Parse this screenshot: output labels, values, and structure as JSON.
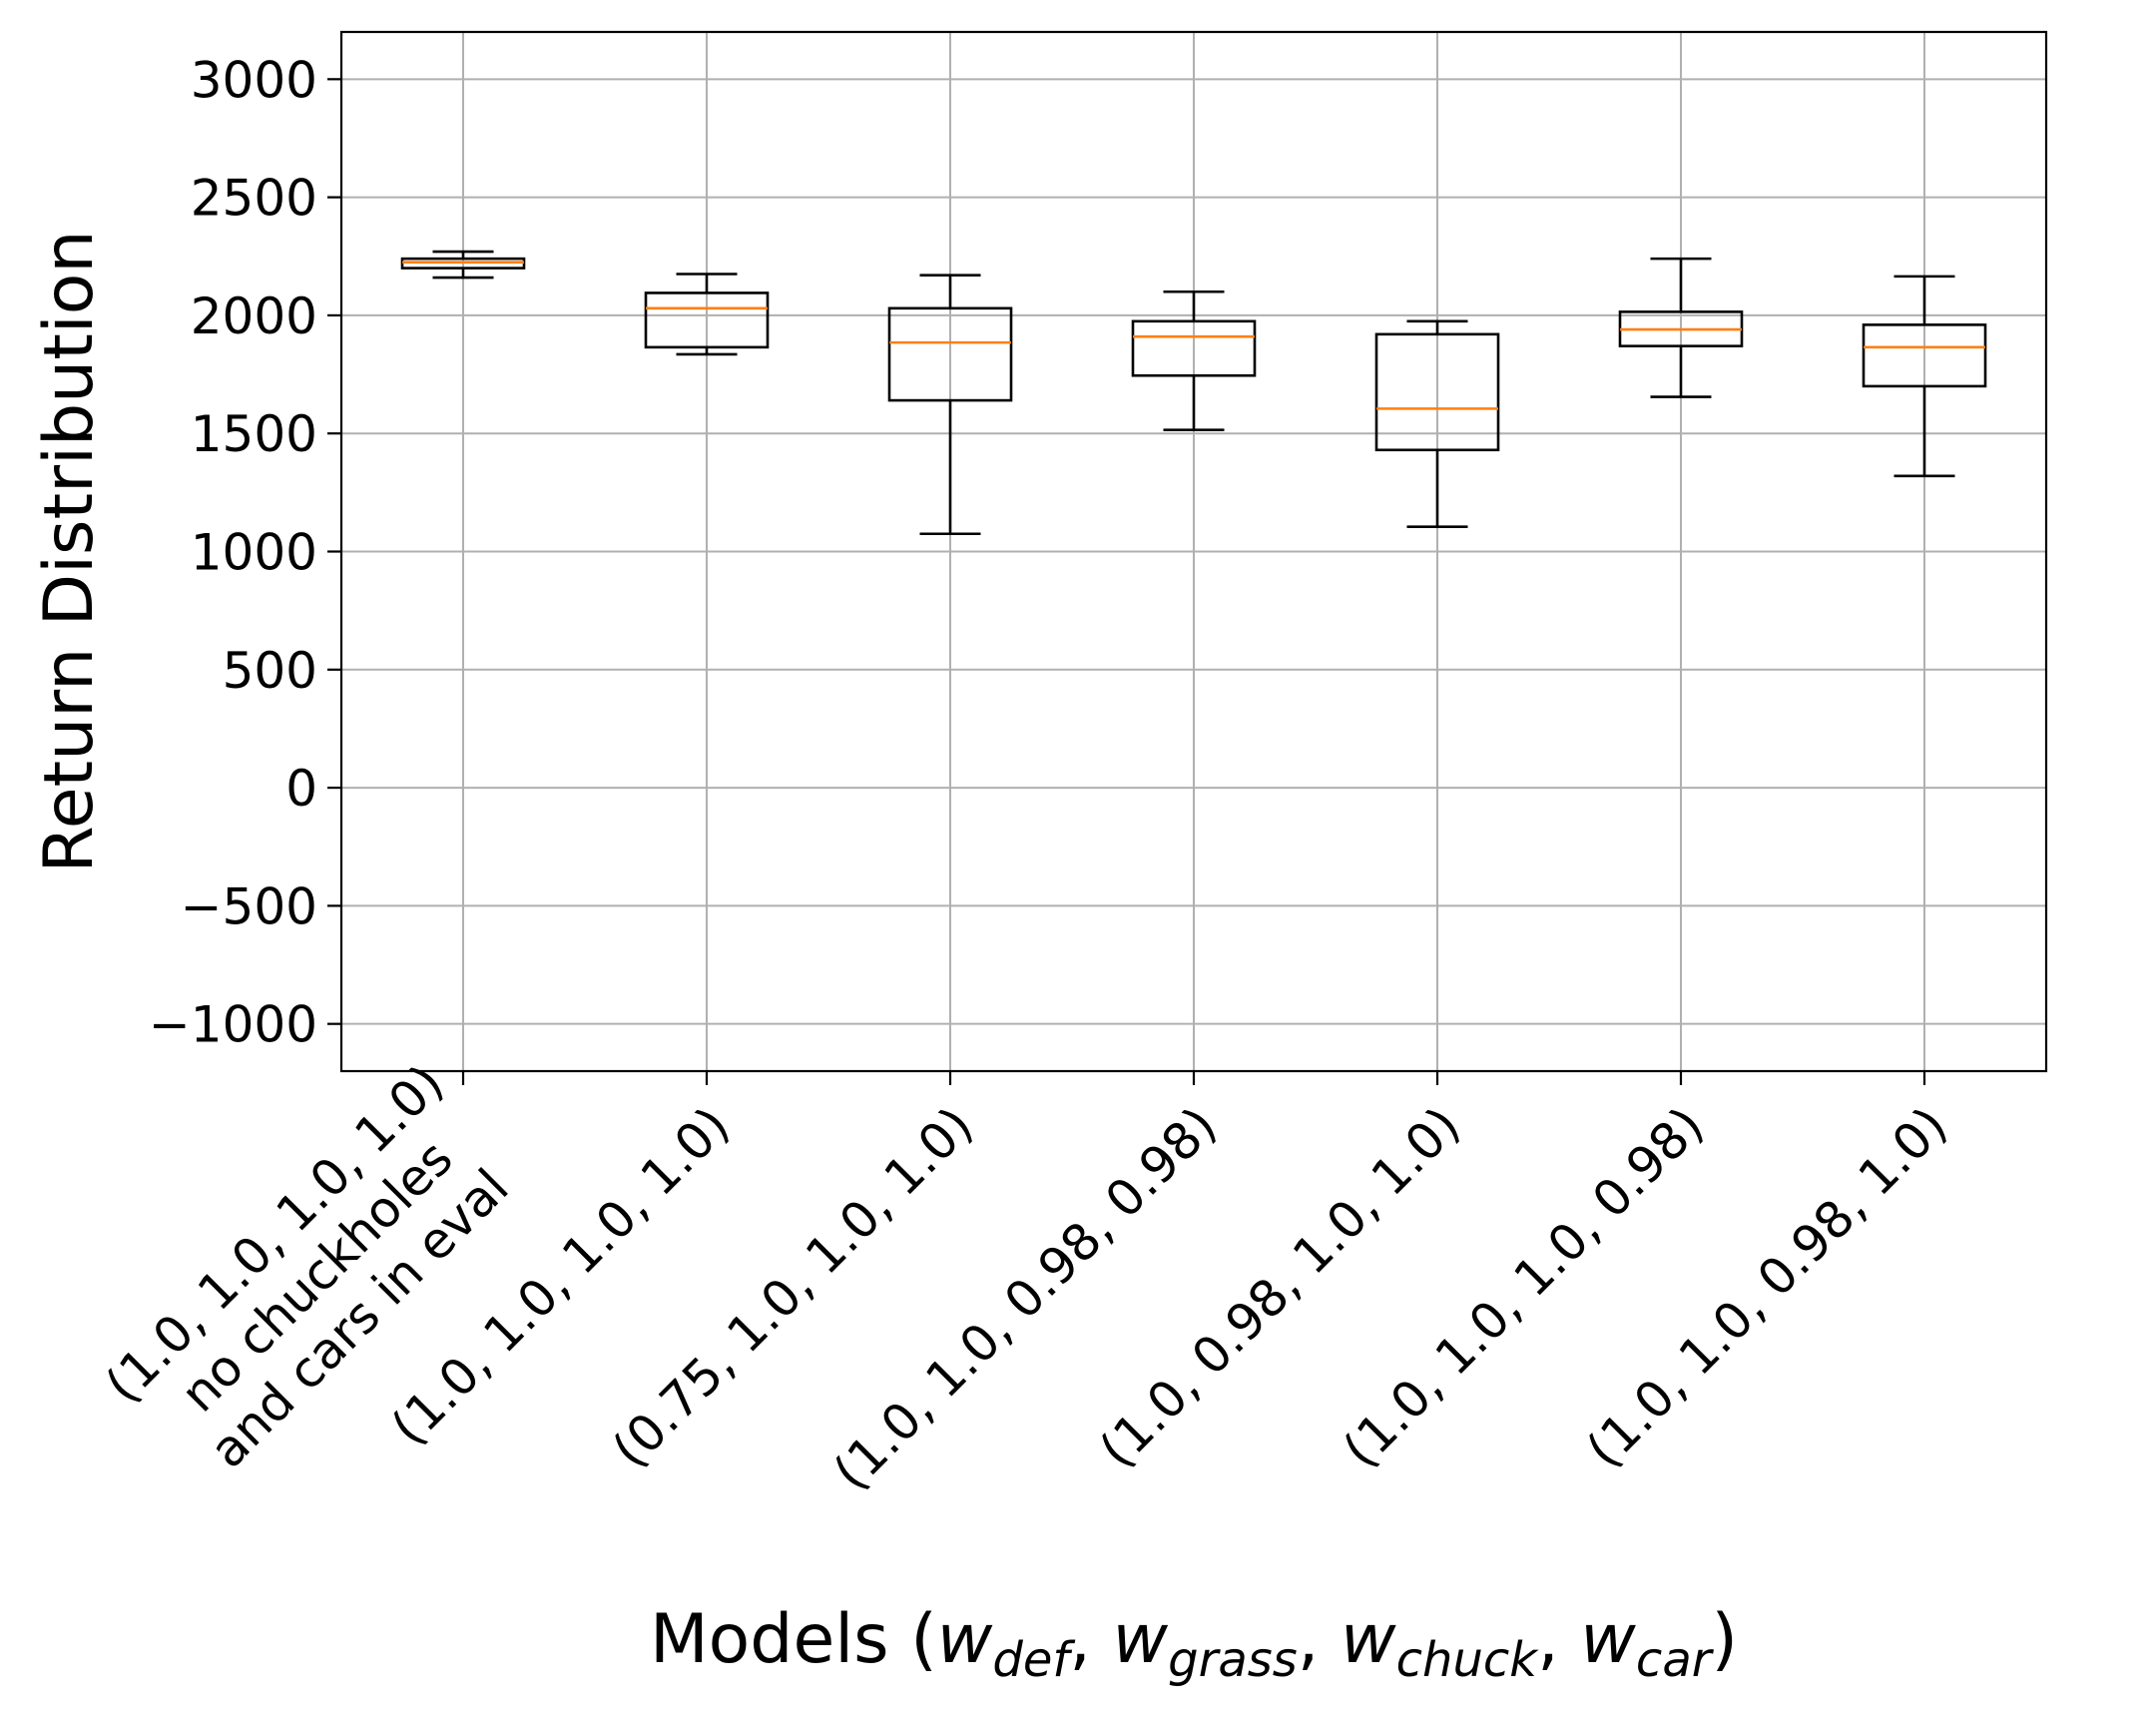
{
  "chart_data": {
    "type": "box",
    "title": "",
    "ylabel": "Return Distribution",
    "xlabel": {
      "prefix": "Models (",
      "terms": [
        {
          "var": "w",
          "sub": "def"
        },
        {
          "var": "w",
          "sub": "grass"
        },
        {
          "var": "w",
          "sub": "chuck"
        },
        {
          "var": "w",
          "sub": "car"
        }
      ],
      "separator": ", ",
      "suffix": ")"
    },
    "ylim": [
      -1200,
      3200
    ],
    "yticks": [
      -1000,
      -500,
      0,
      500,
      1000,
      1500,
      2000,
      2500,
      3000
    ],
    "ytick_labels": [
      "−1000",
      "−500",
      "0",
      "500",
      "1000",
      "1500",
      "2000",
      "2500",
      "3000"
    ],
    "grid": true,
    "colors": {
      "box": "#000000",
      "median": "#ff7f0e",
      "grid": "#b0b0b0"
    },
    "categories": [
      [
        "(1.0, 1.0, 1.0, 1.0)",
        "no chuckholes",
        "and cars in eval"
      ],
      [
        "(1.0, 1.0, 1.0, 1.0)"
      ],
      [
        "(0.75, 1.0, 1.0, 1.0)"
      ],
      [
        "(1.0, 1.0, 0.98, 0.98)"
      ],
      [
        "(1.0, 0.98, 1.0, 1.0)"
      ],
      [
        "(1.0, 1.0, 1.0, 0.98)"
      ],
      [
        "(1.0, 1.0, 0.98, 1.0)"
      ]
    ],
    "boxes": [
      {
        "whislo": 2160,
        "q1": 2200,
        "med": 2225,
        "q3": 2240,
        "whishi": 2270
      },
      {
        "whislo": 1835,
        "q1": 1865,
        "med": 2030,
        "q3": 2095,
        "whishi": 2175
      },
      {
        "whislo": 1075,
        "q1": 1640,
        "med": 1885,
        "q3": 2030,
        "whishi": 2170
      },
      {
        "whislo": 1515,
        "q1": 1745,
        "med": 1910,
        "q3": 1975,
        "whishi": 2100
      },
      {
        "whislo": 1105,
        "q1": 1430,
        "med": 1605,
        "q3": 1920,
        "whishi": 1975
      },
      {
        "whislo": 1655,
        "q1": 1870,
        "med": 1940,
        "q3": 2015,
        "whishi": 2240
      },
      {
        "whislo": 1320,
        "q1": 1700,
        "med": 1865,
        "q3": 1960,
        "whishi": 2165
      }
    ]
  }
}
